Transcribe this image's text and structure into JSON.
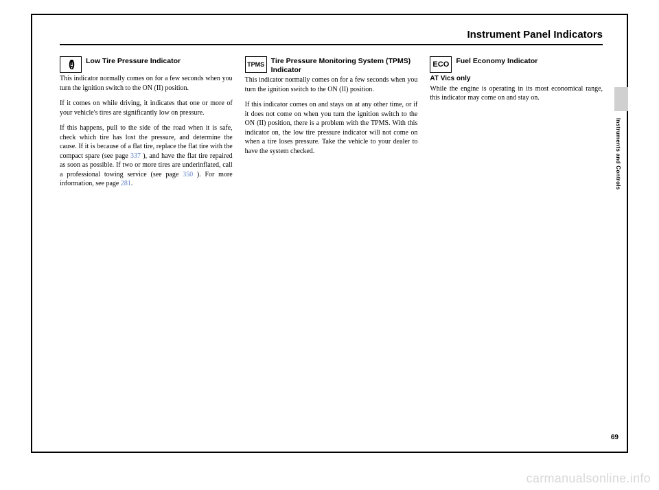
{
  "header": {
    "title": "Instrument Panel Indicators"
  },
  "sidebar": {
    "label": "Instruments and Controls",
    "page_number": "69"
  },
  "columns": {
    "col1": {
      "icon": "(!)",
      "heading": "Low Tire Pressure Indicator",
      "p1": "This indicator normally comes on for a few seconds when you turn the ignition switch to the ON (II) position.",
      "p2": "If it comes on while driving, it indicates that one or more of your vehicle's tires are significantly low on pressure.",
      "p3a": "If this happens, pull to the side of the road when it is safe, check which tire has lost the pressure, and determine the cause. If it is because of a flat tire, replace the flat tire with the compact spare (see page ",
      "p3_ref1": "337",
      "p3b": " ), and have the flat tire repaired as soon as possible. If two or more tires are underinflated, call a professional towing service (see page ",
      "p3_ref2": "350",
      "p3c": " ). For more information, see page ",
      "p3_ref3": "281",
      "p3d": "."
    },
    "col2": {
      "icon": "TPMS",
      "heading": "Tire Pressure Monitoring System (TPMS) Indicator",
      "p1": "This indicator normally comes on for a few seconds when you turn the ignition switch to the ON (II) position.",
      "p2": "If this indicator comes on and stays on at any other time, or if it does not come on when you turn the ignition switch to the ON (II) position, there is a problem with the TPMS. With this indicator on, the low tire pressure indicator will not come on when a tire loses pressure. Take the vehicle to your dealer to have the system checked."
    },
    "col3": {
      "icon": "ECO",
      "heading": "Fuel Economy Indicator",
      "sub": "AT Vics only",
      "p1": "While the engine is operating in its most economical range, this indicator may come on and stay on."
    }
  },
  "watermark": "carmanualsonline.info"
}
